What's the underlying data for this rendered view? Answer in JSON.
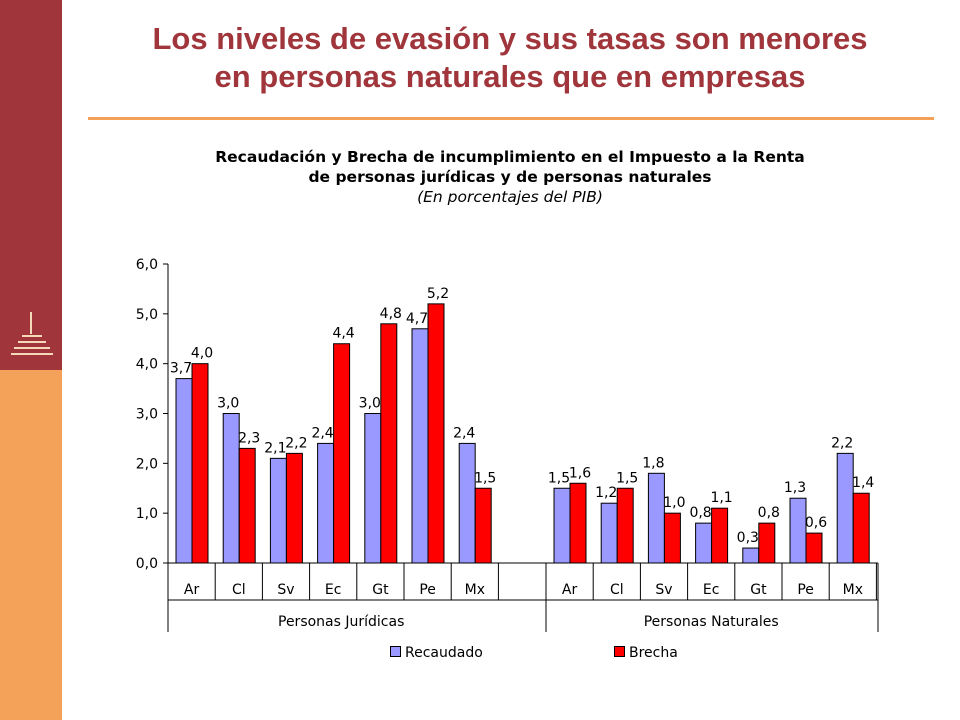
{
  "slide": {
    "title_line1": "Los niveles de evasión y sus tasas son menores",
    "title_line2": "en personas naturales que en empresas",
    "accent_color": "#a0363b",
    "secondary_color": "#f4a25a"
  },
  "chart_data": {
    "type": "bar",
    "title_line1": "Recaudación y Brecha de incumplimiento en el Impuesto a la Renta",
    "title_line2": "de personas jurídicas y de personas naturales",
    "subtitle": "(En porcentajes del PIB)",
    "ylim": [
      0,
      6
    ],
    "yticks": [
      "0,0",
      "1,0",
      "2,0",
      "3,0",
      "4,0",
      "5,0",
      "6,0"
    ],
    "groups": [
      {
        "label": "Personas Jurídicas",
        "categories": [
          "Ar",
          "Cl",
          "Sv",
          "Ec",
          "Gt",
          "Pe",
          "Mx"
        ],
        "recaudado": [
          3.7,
          3.0,
          2.1,
          2.4,
          3.0,
          4.7,
          2.4
        ],
        "brecha": [
          4.0,
          2.3,
          2.2,
          4.4,
          4.8,
          5.2,
          1.5
        ],
        "recaudado_labels": [
          "3,7",
          "3,0",
          "2,1",
          "2,4",
          "3,0",
          "4,7",
          "2,4"
        ],
        "brecha_labels": [
          "4,0",
          "2,3",
          "2,2",
          "4,4",
          "4,8",
          "5,2",
          "1,5"
        ]
      },
      {
        "label": "Personas Naturales",
        "categories": [
          "Ar",
          "Cl",
          "Sv",
          "Ec",
          "Gt",
          "Pe",
          "Mx"
        ],
        "recaudado": [
          1.5,
          1.2,
          1.8,
          0.8,
          0.3,
          1.3,
          2.2
        ],
        "brecha": [
          1.6,
          1.5,
          1.0,
          1.1,
          0.8,
          0.6,
          1.4
        ],
        "recaudado_labels": [
          "1,5",
          "1,2",
          "1,8",
          "0,8",
          "0,3",
          "1,3",
          "2,2"
        ],
        "brecha_labels": [
          "1,6",
          "1,5",
          "1,0",
          "1,1",
          "0,8",
          "0,6",
          "1,4"
        ]
      }
    ],
    "series": [
      {
        "name": "Recaudado",
        "color": "#9999ff"
      },
      {
        "name": "Brecha",
        "color": "#ff0000"
      }
    ],
    "grid": false,
    "legend_position": "bottom"
  }
}
